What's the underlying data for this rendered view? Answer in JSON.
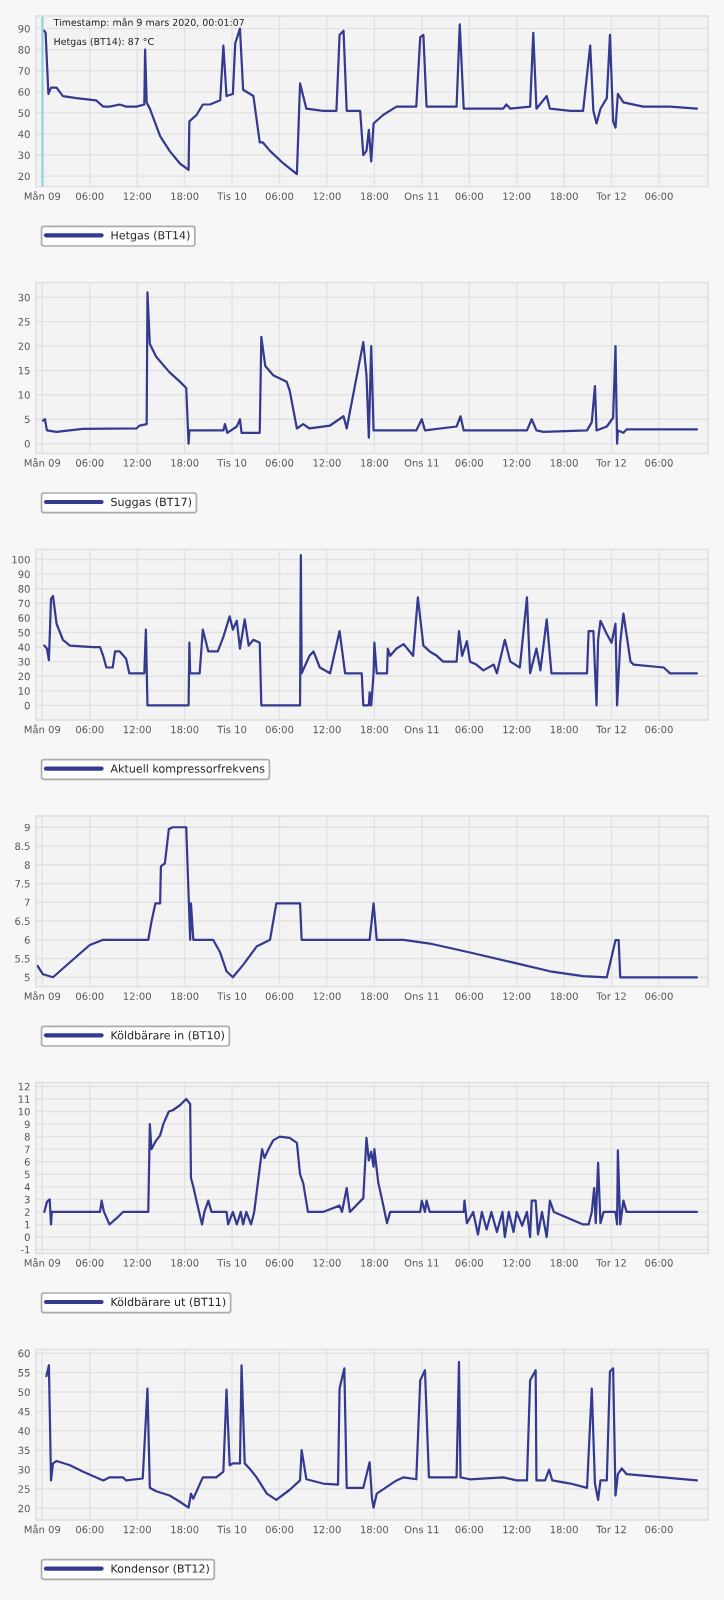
{
  "chart_data": [
    {
      "type": "line",
      "xlim": [
        "2020-03-08T23:12",
        "2020-03-12T12:12"
      ],
      "xticks": [
        {
          "value": "2020-03-09",
          "label": "Mån 09"
        },
        {
          "value": "2020-03-09T06:00",
          "label": "06:00"
        },
        {
          "value": "2020-03-09T12:00",
          "label": "12:00"
        },
        {
          "value": "2020-03-09T18:00",
          "label": "18:00"
        },
        {
          "value": "2020-03-10",
          "label": "Tis 10"
        },
        {
          "value": "2020-03-10T06:00",
          "label": "06:00"
        },
        {
          "value": "2020-03-10T12:00",
          "label": "12:00"
        },
        {
          "value": "2020-03-10T18:00",
          "label": "18:00"
        },
        {
          "value": "2020-03-11",
          "label": "Ons 11"
        },
        {
          "value": "2020-03-11T06:00",
          "label": "06:00"
        },
        {
          "value": "2020-03-11T12:00",
          "label": "12:00"
        },
        {
          "value": "2020-03-11T18:00",
          "label": "18:00"
        },
        {
          "value": "2020-03-12",
          "label": "Tor 12"
        },
        {
          "value": "2020-03-12T06:00",
          "label": "06:00"
        }
      ],
      "ylim": [
        15,
        96
      ],
      "yticks": [
        20,
        30,
        40,
        50,
        60,
        70,
        80,
        90
      ],
      "grid": true,
      "legend": "bottom left",
      "marker": "none",
      "line_style": "solid",
      "ref_lines": [
        {
          "axis": "x",
          "value": "2020-03-09T00:01",
          "color": "#8fd3e0"
        }
      ],
      "annotations": [
        {
          "text": "Timestamp: mån 9 mars 2020, 00:01:07",
          "x": "2020-03-09T00:01",
          "y": 90
        },
        {
          "text": "Hetgas (BT14): 87 °C",
          "x": "2020-03-09T00:01",
          "y": 87
        }
      ],
      "series": [
        {
          "name": "Hetgas (BT14)",
          "color": "#343a8f",
          "x": [
            "2020-03-09T00:15",
            "2020-03-09T00:25",
            "2020-03-09T00:46",
            "2020-03-09T01:06",
            "2020-03-09T01:48",
            "2020-03-09T02:36",
            "2020-03-09T04:18",
            "2020-03-09T06:48",
            "2020-03-09T07:42",
            "2020-03-09T08:30",
            "2020-03-09T09:48",
            "2020-03-09T10:36",
            "2020-03-09T11:54",
            "2020-03-09T12:54",
            "2020-03-09T13:00",
            "2020-03-09T13:12",
            "2020-03-09T13:36",
            "2020-03-09T14:54",
            "2020-03-09T16:06",
            "2020-03-09T17:24",
            "2020-03-09T18:30",
            "2020-03-09T18:36",
            "2020-03-09T19:30",
            "2020-03-09T20:18",
            "2020-03-09T21:12",
            "2020-03-09T22:30",
            "2020-03-09T22:54",
            "2020-03-09T23:18",
            "2020-03-10T00:06",
            "2020-03-10T00:24",
            "2020-03-10T01:00",
            "2020-03-10T01:24",
            "2020-03-10T02:42",
            "2020-03-10T03:30",
            "2020-03-10T03:54",
            "2020-03-10T04:48",
            "2020-03-10T06:30",
            "2020-03-10T08:12",
            "2020-03-10T08:36",
            "2020-03-10T09:24",
            "2020-03-10T11:30",
            "2020-03-10T13:12",
            "2020-03-10T13:36",
            "2020-03-10T14:06",
            "2020-03-10T14:30",
            "2020-03-10T16:12",
            "2020-03-10T16:36",
            "2020-03-10T17:00",
            "2020-03-10T17:18",
            "2020-03-10T17:36",
            "2020-03-10T17:54",
            "2020-03-10T19:06",
            "2020-03-10T20:48",
            "2020-03-10T22:30",
            "2020-03-10T23:18",
            "2020-03-10T23:48",
            "2020-03-11T00:12",
            "2020-03-11T00:36",
            "2020-03-11T04:24",
            "2020-03-11T04:48",
            "2020-03-11T05:18",
            "2020-03-11T10:18",
            "2020-03-11T10:42",
            "2020-03-11T11:12",
            "2020-03-11T13:42",
            "2020-03-11T14:06",
            "2020-03-11T14:30",
            "2020-03-11T15:48",
            "2020-03-11T16:12",
            "2020-03-11T18:48",
            "2020-03-11T20:24",
            "2020-03-11T21:18",
            "2020-03-11T21:42",
            "2020-03-11T22:06",
            "2020-03-11T22:36",
            "2020-03-11T23:24",
            "2020-03-11T23:48",
            "2020-03-12T00:12",
            "2020-03-12T00:30",
            "2020-03-12T00:48",
            "2020-03-12T01:30",
            "2020-03-12T04:00",
            "2020-03-12T07:24",
            "2020-03-12T10:48"
          ],
          "values": [
            89,
            88,
            59,
            62,
            62,
            58,
            57,
            56,
            53,
            53,
            54,
            53,
            53,
            54,
            80,
            55,
            52,
            39,
            32,
            26,
            23,
            46,
            49,
            54,
            54,
            56,
            82,
            58,
            59,
            83,
            90,
            61,
            58,
            36,
            36,
            32,
            26,
            21,
            64,
            52,
            51,
            51,
            87,
            89,
            51,
            51,
            30,
            32,
            42,
            27,
            45,
            49,
            53,
            53,
            53,
            86,
            87,
            53,
            53,
            92,
            52,
            52,
            54,
            52,
            53,
            88,
            52,
            58,
            52,
            51,
            51,
            82,
            51,
            45,
            52,
            57,
            87,
            46,
            43,
            59,
            55,
            53,
            53,
            52
          ]
        }
      ]
    },
    {
      "type": "line",
      "xlim": [
        "2020-03-08T23:12",
        "2020-03-12T12:12"
      ],
      "xticks": [
        {
          "value": "2020-03-09",
          "label": "Mån 09"
        },
        {
          "value": "2020-03-09T06:00",
          "label": "06:00"
        },
        {
          "value": "2020-03-09T12:00",
          "label": "12:00"
        },
        {
          "value": "2020-03-09T18:00",
          "label": "18:00"
        },
        {
          "value": "2020-03-10",
          "label": "Tis 10"
        },
        {
          "value": "2020-03-10T06:00",
          "label": "06:00"
        },
        {
          "value": "2020-03-10T12:00",
          "label": "12:00"
        },
        {
          "value": "2020-03-10T18:00",
          "label": "18:00"
        },
        {
          "value": "2020-03-11",
          "label": "Ons 11"
        },
        {
          "value": "2020-03-11T06:00",
          "label": "06:00"
        },
        {
          "value": "2020-03-11T12:00",
          "label": "12:00"
        },
        {
          "value": "2020-03-11T18:00",
          "label": "18:00"
        },
        {
          "value": "2020-03-12",
          "label": "Tor 12"
        },
        {
          "value": "2020-03-12T06:00",
          "label": "06:00"
        }
      ],
      "ylim": [
        -2,
        33
      ],
      "yticks": [
        0,
        5,
        10,
        15,
        20,
        25,
        30
      ],
      "grid": true,
      "legend": "bottom left",
      "marker": "none",
      "line_style": "solid",
      "series": [
        {
          "name": "Suggas (BT17)",
          "color": "#343a8f",
          "x": [
            "2020-03-09T00:05",
            "2020-03-09T00:20",
            "2020-03-09T00:35",
            "2020-03-09T01:48",
            "2020-03-09T05:06",
            "2020-03-09T11:54",
            "2020-03-09T12:18",
            "2020-03-09T13:12",
            "2020-03-09T13:18",
            "2020-03-09T13:36",
            "2020-03-09T14:24",
            "2020-03-09T16:06",
            "2020-03-09T17:24",
            "2020-03-09T18:12",
            "2020-03-09T18:30",
            "2020-03-09T18:36",
            "2020-03-09T22:54",
            "2020-03-09T23:06",
            "2020-03-09T23:24",
            "2020-03-10T00:36",
            "2020-03-10T01:00",
            "2020-03-10T01:12",
            "2020-03-10T03:30",
            "2020-03-10T03:42",
            "2020-03-10T04:12",
            "2020-03-10T05:12",
            "2020-03-10T06:54",
            "2020-03-10T07:18",
            "2020-03-10T08:12",
            "2020-03-10T09:00",
            "2020-03-10T09:48",
            "2020-03-10T12:24",
            "2020-03-10T14:06",
            "2020-03-10T14:30",
            "2020-03-10T16:36",
            "2020-03-10T17:00",
            "2020-03-10T17:18",
            "2020-03-10T17:36",
            "2020-03-10T17:54",
            "2020-03-10T23:18",
            "2020-03-11T00:00",
            "2020-03-11T00:24",
            "2020-03-11T04:24",
            "2020-03-11T04:54",
            "2020-03-11T05:18",
            "2020-03-11T13:18",
            "2020-03-11T13:54",
            "2020-03-11T14:30",
            "2020-03-11T15:24",
            "2020-03-11T20:54",
            "2020-03-11T21:30",
            "2020-03-11T21:54",
            "2020-03-11T22:06",
            "2020-03-11T23:24",
            "2020-03-12T00:12",
            "2020-03-12T00:30",
            "2020-03-12T00:42",
            "2020-03-12T00:48",
            "2020-03-12T01:30",
            "2020-03-12T01:54",
            "2020-03-12T10:48"
          ],
          "values": [
            4.7,
            5,
            2.7,
            2.4,
            3,
            3.1,
            3.7,
            4,
            31,
            20.4,
            17.8,
            14.6,
            12.7,
            11.4,
            0,
            2.7,
            2.7,
            4,
            2.2,
            3.5,
            5,
            2.2,
            2.2,
            21.9,
            15.9,
            14,
            12.7,
            10.8,
            3.1,
            4,
            3.1,
            3.7,
            5.6,
            3.1,
            20.8,
            14,
            1.2,
            20,
            2.7,
            2.7,
            5,
            2.7,
            3.5,
            5.6,
            2.7,
            2.7,
            5,
            2.7,
            2.4,
            2.7,
            4.4,
            11.8,
            2.7,
            3.5,
            5.3,
            20,
            0,
            2.7,
            2.2,
            2.9,
            2.9
          ]
        }
      ]
    },
    {
      "type": "line",
      "xlim": [
        "2020-03-08T23:12",
        "2020-03-12T12:12"
      ],
      "xticks": [
        {
          "value": "2020-03-09",
          "label": "Mån 09"
        },
        {
          "value": "2020-03-09T06:00",
          "label": "06:00"
        },
        {
          "value": "2020-03-09T12:00",
          "label": "12:00"
        },
        {
          "value": "2020-03-09T18:00",
          "label": "18:00"
        },
        {
          "value": "2020-03-10",
          "label": "Tis 10"
        },
        {
          "value": "2020-03-10T06:00",
          "label": "06:00"
        },
        {
          "value": "2020-03-10T12:00",
          "label": "12:00"
        },
        {
          "value": "2020-03-10T18:00",
          "label": "18:00"
        },
        {
          "value": "2020-03-11",
          "label": "Ons 11"
        },
        {
          "value": "2020-03-11T06:00",
          "label": "06:00"
        },
        {
          "value": "2020-03-11T12:00",
          "label": "12:00"
        },
        {
          "value": "2020-03-11T18:00",
          "label": "18:00"
        },
        {
          "value": "2020-03-12",
          "label": "Tor 12"
        },
        {
          "value": "2020-03-12T06:00",
          "label": "06:00"
        }
      ],
      "ylim": [
        -10,
        107
      ],
      "yticks": [
        0,
        10,
        20,
        30,
        40,
        50,
        60,
        70,
        80,
        90,
        100
      ],
      "grid": true,
      "legend": "bottom left",
      "marker": "none",
      "line_style": "solid",
      "series": [
        {
          "name": "Aktuell kompressorfrekvens",
          "color": "#343a8f",
          "x": [
            "2020-03-09T00:15",
            "2020-03-09T00:35",
            "2020-03-09T00:50",
            "2020-03-09T01:06",
            "2020-03-09T01:21",
            "2020-03-09T01:48",
            "2020-03-09T02:36",
            "2020-03-09T03:30",
            "2020-03-09T06:24",
            "2020-03-09T07:18",
            "2020-03-09T07:42",
            "2020-03-09T08:06",
            "2020-03-09T08:54",
            "2020-03-09T09:12",
            "2020-03-09T09:48",
            "2020-03-09T10:36",
            "2020-03-09T11:00",
            "2020-03-09T12:54",
            "2020-03-09T13:06",
            "2020-03-09T13:18",
            "2020-03-09T18:30",
            "2020-03-09T18:36",
            "2020-03-09T18:42",
            "2020-03-09T19:54",
            "2020-03-09T20:18",
            "2020-03-09T21:00",
            "2020-03-09T22:12",
            "2020-03-09T22:54",
            "2020-03-09T23:42",
            "2020-03-10T00:06",
            "2020-03-10T00:36",
            "2020-03-10T01:00",
            "2020-03-10T01:36",
            "2020-03-10T02:06",
            "2020-03-10T02:42",
            "2020-03-10T03:30",
            "2020-03-10T03:42",
            "2020-03-10T08:36",
            "2020-03-10T08:42",
            "2020-03-10T08:48",
            "2020-03-10T09:48",
            "2020-03-10T10:18",
            "2020-03-10T11:06",
            "2020-03-10T12:24",
            "2020-03-10T13:36",
            "2020-03-10T14:18",
            "2020-03-10T16:24",
            "2020-03-10T16:36",
            "2020-03-10T17:18",
            "2020-03-10T17:24",
            "2020-03-10T17:36",
            "2020-03-10T17:54",
            "2020-03-10T18:00",
            "2020-03-10T18:18",
            "2020-03-10T19:36",
            "2020-03-10T19:42",
            "2020-03-10T20:00",
            "2020-03-10T20:48",
            "2020-03-10T21:42",
            "2020-03-10T22:54",
            "2020-03-10T23:30",
            "2020-03-11T00:12",
            "2020-03-11T01:00",
            "2020-03-11T01:54",
            "2020-03-11T02:42",
            "2020-03-11T04:24",
            "2020-03-11T04:42",
            "2020-03-11T05:06",
            "2020-03-11T05:42",
            "2020-03-11T06:06",
            "2020-03-11T06:54",
            "2020-03-11T07:48",
            "2020-03-11T09:06",
            "2020-03-11T09:30",
            "2020-03-11T10:30",
            "2020-03-11T11:12",
            "2020-03-11T12:24",
            "2020-03-11T13:18",
            "2020-03-11T13:42",
            "2020-03-11T14:30",
            "2020-03-11T15:00",
            "2020-03-11T15:48",
            "2020-03-11T16:24",
            "2020-03-11T20:54",
            "2020-03-11T21:06",
            "2020-03-11T21:42",
            "2020-03-11T22:06",
            "2020-03-11T22:18",
            "2020-03-11T22:36",
            "2020-03-11T23:24",
            "2020-03-12T00:00",
            "2020-03-12T00:30",
            "2020-03-12T00:42",
            "2020-03-12T01:06",
            "2020-03-12T01:30",
            "2020-03-12T02:24",
            "2020-03-12T02:48",
            "2020-03-12T06:36",
            "2020-03-12T07:24",
            "2020-03-12T10:48"
          ],
          "values": [
            41,
            39,
            31,
            73,
            75,
            56,
            45,
            41,
            40,
            40,
            34,
            26,
            26,
            37,
            37,
            32,
            22,
            22,
            52,
            0,
            0,
            43,
            22,
            22,
            52,
            37,
            37,
            47,
            61,
            52,
            58,
            39,
            59,
            41,
            45,
            43,
            0,
            0,
            103,
            22,
            34,
            37,
            26,
            22,
            51,
            22,
            22,
            0,
            0,
            9,
            0,
            22,
            43,
            22,
            22,
            39,
            34,
            39,
            42,
            34,
            74,
            41,
            37,
            34,
            30,
            30,
            51,
            34,
            44,
            30,
            28,
            24,
            28,
            22,
            45,
            30,
            26,
            74,
            22,
            39,
            24,
            59,
            22,
            22,
            51,
            51,
            0,
            45,
            58,
            49,
            43,
            56,
            0,
            43,
            63,
            30,
            28,
            26,
            22,
            22
          ]
        }
      ]
    },
    {
      "type": "line",
      "xlim": [
        "2020-03-08T23:12",
        "2020-03-12T12:12"
      ],
      "xticks": [
        {
          "value": "2020-03-09",
          "label": "Mån 09"
        },
        {
          "value": "2020-03-09T06:00",
          "label": "06:00"
        },
        {
          "value": "2020-03-09T12:00",
          "label": "12:00"
        },
        {
          "value": "2020-03-09T18:00",
          "label": "18:00"
        },
        {
          "value": "2020-03-10",
          "label": "Tis 10"
        },
        {
          "value": "2020-03-10T06:00",
          "label": "06:00"
        },
        {
          "value": "2020-03-10T12:00",
          "label": "12:00"
        },
        {
          "value": "2020-03-10T18:00",
          "label": "18:00"
        },
        {
          "value": "2020-03-11",
          "label": "Ons 11"
        },
        {
          "value": "2020-03-11T06:00",
          "label": "06:00"
        },
        {
          "value": "2020-03-11T12:00",
          "label": "12:00"
        },
        {
          "value": "2020-03-11T18:00",
          "label": "18:00"
        },
        {
          "value": "2020-03-12",
          "label": "Tor 12"
        },
        {
          "value": "2020-03-12T06:00",
          "label": "06:00"
        }
      ],
      "ylim": [
        4.75,
        9.3
      ],
      "yticks": [
        5,
        5.5,
        6,
        6.5,
        7,
        7.5,
        8,
        8.5,
        9
      ],
      "grid": true,
      "legend": "bottom left",
      "marker": "none",
      "line_style": "solid",
      "series": [
        {
          "name": "Köldbärare in (BT10)",
          "color": "#343a8f",
          "x": [
            "2020-03-08T23:25",
            "2020-03-09T00:05",
            "2020-03-09T01:21",
            "2020-03-09T03:30",
            "2020-03-09T06:00",
            "2020-03-09T07:42",
            "2020-03-09T13:24",
            "2020-03-09T13:48",
            "2020-03-09T14:18",
            "2020-03-09T14:54",
            "2020-03-09T15:00",
            "2020-03-09T15:30",
            "2020-03-09T16:00",
            "2020-03-09T16:30",
            "2020-03-09T18:12",
            "2020-03-09T18:42",
            "2020-03-09T18:48",
            "2020-03-09T19:06",
            "2020-03-09T21:36",
            "2020-03-09T22:30",
            "2020-03-09T23:18",
            "2020-03-10T00:06",
            "2020-03-10T01:24",
            "2020-03-10T03:06",
            "2020-03-10T04:48",
            "2020-03-10T05:36",
            "2020-03-10T08:36",
            "2020-03-10T08:48",
            "2020-03-10T17:24",
            "2020-03-10T17:54",
            "2020-03-10T18:18",
            "2020-03-10T21:42",
            "2020-03-11T01:00",
            "2020-03-11T06:06",
            "2020-03-11T11:12",
            "2020-03-11T16:12",
            "2020-03-11T20:24",
            "2020-03-11T23:24",
            "2020-03-12T00:30",
            "2020-03-12T00:54",
            "2020-03-12T01:06",
            "2020-03-12T10:48"
          ],
          "values": [
            5.3,
            5.08,
            5.0,
            5.4,
            5.86,
            6.0,
            6.0,
            6.48,
            6.97,
            6.97,
            7.96,
            8.04,
            8.95,
            9.0,
            9.0,
            6.0,
            6.97,
            6.0,
            6.0,
            5.66,
            5.16,
            5.0,
            5.33,
            5.82,
            6.0,
            6.97,
            6.97,
            6.0,
            6.0,
            6.97,
            6.0,
            6.0,
            5.9,
            5.66,
            5.41,
            5.16,
            5.03,
            5.0,
            5.99,
            5.99,
            5.0,
            5.0
          ]
        }
      ]
    },
    {
      "type": "line",
      "xlim": [
        "2020-03-08T23:12",
        "2020-03-12T12:12"
      ],
      "xticks": [
        {
          "value": "2020-03-09",
          "label": "Mån 09"
        },
        {
          "value": "2020-03-09T06:00",
          "label": "06:00"
        },
        {
          "value": "2020-03-09T12:00",
          "label": "12:00"
        },
        {
          "value": "2020-03-09T18:00",
          "label": "18:00"
        },
        {
          "value": "2020-03-10",
          "label": "Tis 10"
        },
        {
          "value": "2020-03-10T06:00",
          "label": "06:00"
        },
        {
          "value": "2020-03-10T12:00",
          "label": "12:00"
        },
        {
          "value": "2020-03-10T18:00",
          "label": "18:00"
        },
        {
          "value": "2020-03-11",
          "label": "Ons 11"
        },
        {
          "value": "2020-03-11T06:00",
          "label": "06:00"
        },
        {
          "value": "2020-03-11T12:00",
          "label": "12:00"
        },
        {
          "value": "2020-03-11T18:00",
          "label": "18:00"
        },
        {
          "value": "2020-03-12",
          "label": "Tor 12"
        },
        {
          "value": "2020-03-12T06:00",
          "label": "06:00"
        }
      ],
      "ylim": [
        -1.3,
        12.3
      ],
      "yticks": [
        -1,
        0,
        1,
        2,
        3,
        4,
        5,
        6,
        7,
        8,
        9,
        10,
        11,
        12
      ],
      "grid": true,
      "legend": "bottom left",
      "marker": "none",
      "line_style": "solid",
      "series": [
        {
          "name": "Köldbärare ut (BT11)",
          "color": "#343a8f",
          "x": [
            "2020-03-09T00:15",
            "2020-03-09T00:35",
            "2020-03-09T00:56",
            "2020-03-09T01:06",
            "2020-03-09T01:12",
            "2020-03-09T07:18",
            "2020-03-09T07:30",
            "2020-03-09T07:48",
            "2020-03-09T08:30",
            "2020-03-09T09:24",
            "2020-03-09T10:12",
            "2020-03-09T13:24",
            "2020-03-09T13:36",
            "2020-03-09T13:48",
            "2020-03-09T14:18",
            "2020-03-09T14:54",
            "2020-03-09T15:18",
            "2020-03-09T16:00",
            "2020-03-09T16:30",
            "2020-03-09T17:24",
            "2020-03-09T18:12",
            "2020-03-09T18:42",
            "2020-03-09T18:48",
            "2020-03-09T19:06",
            "2020-03-09T19:30",
            "2020-03-09T20:12",
            "2020-03-09T20:30",
            "2020-03-09T21:00",
            "2020-03-09T21:24",
            "2020-03-09T23:18",
            "2020-03-09T23:30",
            "2020-03-10T00:06",
            "2020-03-10T00:36",
            "2020-03-10T01:06",
            "2020-03-10T01:24",
            "2020-03-10T01:48",
            "2020-03-10T02:24",
            "2020-03-10T02:48",
            "2020-03-10T03:48",
            "2020-03-10T04:06",
            "2020-03-10T04:36",
            "2020-03-10T05:12",
            "2020-03-10T06:00",
            "2020-03-10T07:18",
            "2020-03-10T08:12",
            "2020-03-10T08:36",
            "2020-03-10T09:00",
            "2020-03-10T09:36",
            "2020-03-10T11:30",
            "2020-03-10T13:36",
            "2020-03-10T13:54",
            "2020-03-10T14:30",
            "2020-03-10T14:54",
            "2020-03-10T16:36",
            "2020-03-10T17:00",
            "2020-03-10T17:18",
            "2020-03-10T17:36",
            "2020-03-10T17:54",
            "2020-03-10T18:00",
            "2020-03-10T18:30",
            "2020-03-10T19:00",
            "2020-03-10T19:36",
            "2020-03-10T20:00",
            "2020-03-10T23:48",
            "2020-03-11T00:00",
            "2020-03-11T00:24",
            "2020-03-11T00:36",
            "2020-03-11T01:00",
            "2020-03-11T05:18",
            "2020-03-11T05:24",
            "2020-03-11T05:42",
            "2020-03-11T06:30",
            "2020-03-11T07:06",
            "2020-03-11T07:36",
            "2020-03-11T08:12",
            "2020-03-11T08:48",
            "2020-03-11T09:30",
            "2020-03-11T10:12",
            "2020-03-11T10:30",
            "2020-03-11T11:00",
            "2020-03-11T11:36",
            "2020-03-11T12:00",
            "2020-03-11T12:42",
            "2020-03-11T13:18",
            "2020-03-11T13:42",
            "2020-03-11T13:54",
            "2020-03-11T14:24",
            "2020-03-11T14:42",
            "2020-03-11T15:12",
            "2020-03-11T15:48",
            "2020-03-11T16:12",
            "2020-03-11T16:42",
            "2020-03-11T20:24",
            "2020-03-11T21:06",
            "2020-03-11T21:30",
            "2020-03-11T21:48",
            "2020-03-11T22:00",
            "2020-03-11T22:18",
            "2020-03-11T22:36",
            "2020-03-11T23:00",
            "2020-03-12T00:30",
            "2020-03-12T00:42",
            "2020-03-12T00:48",
            "2020-03-12T01:06",
            "2020-03-12T01:30",
            "2020-03-12T01:54",
            "2020-03-12T10:48"
          ],
          "values": [
            2,
            2.8,
            3,
            1,
            2,
            2,
            2.9,
            2,
            1,
            1.5,
            2,
            2,
            9,
            7,
            7.6,
            8.1,
            9,
            10,
            10.1,
            10.5,
            11,
            10.6,
            4.7,
            4,
            2.9,
            1,
            2,
            2.9,
            2,
            2,
            1,
            2,
            1,
            2,
            1,
            2,
            1,
            2,
            7,
            6.3,
            7,
            7.7,
            8,
            7.9,
            7.5,
            5,
            4.3,
            2,
            2,
            2.5,
            2,
            3.9,
            2,
            3.1,
            7.9,
            6.1,
            6.8,
            5.6,
            7,
            4.3,
            2.9,
            1.1,
            2,
            2,
            2.9,
            2,
            2.9,
            2,
            2,
            2.9,
            1.1,
            2,
            0.2,
            2,
            0.6,
            2,
            0.4,
            2,
            0,
            2,
            0.4,
            2,
            0.9,
            2,
            0,
            2.9,
            2.9,
            0.2,
            2,
            0,
            2.9,
            2,
            1,
            1,
            2,
            3.9,
            1.1,
            5.9,
            1.1,
            2,
            2,
            1,
            6.9,
            1,
            2.9,
            2,
            2
          ]
        }
      ]
    },
    {
      "type": "line",
      "xlim": [
        "2020-03-08T23:12",
        "2020-03-12T12:12"
      ],
      "xticks": [
        {
          "value": "2020-03-09",
          "label": "Mån 09"
        },
        {
          "value": "2020-03-09T06:00",
          "label": "06:00"
        },
        {
          "value": "2020-03-09T12:00",
          "label": "12:00"
        },
        {
          "value": "2020-03-09T18:00",
          "label": "18:00"
        },
        {
          "value": "2020-03-10",
          "label": "Tis 10"
        },
        {
          "value": "2020-03-10T06:00",
          "label": "06:00"
        },
        {
          "value": "2020-03-10T12:00",
          "label": "12:00"
        },
        {
          "value": "2020-03-10T18:00",
          "label": "18:00"
        },
        {
          "value": "2020-03-11",
          "label": "Ons 11"
        },
        {
          "value": "2020-03-11T06:00",
          "label": "06:00"
        },
        {
          "value": "2020-03-11T12:00",
          "label": "12:00"
        },
        {
          "value": "2020-03-11T18:00",
          "label": "18:00"
        },
        {
          "value": "2020-03-12",
          "label": "Tor 12"
        },
        {
          "value": "2020-03-12T06:00",
          "label": "06:00"
        }
      ],
      "ylim": [
        17,
        61
      ],
      "yticks": [
        20,
        25,
        30,
        35,
        40,
        45,
        50,
        55,
        60
      ],
      "grid": true,
      "legend": "bottom left",
      "marker": "none",
      "line_style": "solid",
      "series": [
        {
          "name": "Kondensor (BT12)",
          "color": "#343a8f",
          "x": [
            "2020-03-09T00:31",
            "2020-03-09T00:50",
            "2020-03-09T01:06",
            "2020-03-09T01:21",
            "2020-03-09T01:48",
            "2020-03-09T03:30",
            "2020-03-09T05:06",
            "2020-03-09T07:42",
            "2020-03-09T08:30",
            "2020-03-09T10:12",
            "2020-03-09T10:36",
            "2020-03-09T12:42",
            "2020-03-09T13:18",
            "2020-03-09T13:36",
            "2020-03-09T14:24",
            "2020-03-09T16:06",
            "2020-03-09T17:24",
            "2020-03-09T18:30",
            "2020-03-09T18:48",
            "2020-03-09T19:06",
            "2020-03-09T20:18",
            "2020-03-09T22:00",
            "2020-03-09T22:54",
            "2020-03-09T23:18",
            "2020-03-09T23:42",
            "2020-03-10T00:06",
            "2020-03-10T01:00",
            "2020-03-10T01:12",
            "2020-03-10T01:36",
            "2020-03-10T02:12",
            "2020-03-10T03:06",
            "2020-03-10T04:24",
            "2020-03-10T05:36",
            "2020-03-10T07:18",
            "2020-03-10T08:36",
            "2020-03-10T08:48",
            "2020-03-10T09:24",
            "2020-03-10T11:30",
            "2020-03-10T13:24",
            "2020-03-10T13:36",
            "2020-03-10T14:12",
            "2020-03-10T14:30",
            "2020-03-10T16:36",
            "2020-03-10T17:24",
            "2020-03-10T17:42",
            "2020-03-10T17:54",
            "2020-03-10T18:18",
            "2020-03-10T20:48",
            "2020-03-10T21:42",
            "2020-03-10T23:18",
            "2020-03-10T23:48",
            "2020-03-11T00:24",
            "2020-03-11T00:54",
            "2020-03-11T04:24",
            "2020-03-11T04:42",
            "2020-03-11T04:54",
            "2020-03-11T06:06",
            "2020-03-11T10:18",
            "2020-03-11T12:00",
            "2020-03-11T13:18",
            "2020-03-11T13:42",
            "2020-03-11T14:24",
            "2020-03-11T14:30",
            "2020-03-11T15:36",
            "2020-03-11T16:06",
            "2020-03-11T16:30",
            "2020-03-11T18:48",
            "2020-03-11T20:54",
            "2020-03-11T21:30",
            "2020-03-11T21:54",
            "2020-03-11T22:18",
            "2020-03-11T22:36",
            "2020-03-11T23:24",
            "2020-03-11T23:48",
            "2020-03-12T00:12",
            "2020-03-12T00:30",
            "2020-03-12T00:48",
            "2020-03-12T01:18",
            "2020-03-12T01:54",
            "2020-03-12T10:48"
          ],
          "values": [
            54.1,
            56.9,
            27.2,
            31.6,
            32.2,
            31.1,
            29.5,
            27.2,
            28,
            28,
            27.2,
            27.7,
            50.9,
            25.3,
            24.4,
            23.3,
            21.7,
            20.2,
            23.8,
            22.5,
            28,
            28,
            29.5,
            50.6,
            31.1,
            31.6,
            31.6,
            56.9,
            31.6,
            30.3,
            28,
            23.8,
            22.2,
            24.8,
            27.2,
            35,
            27.5,
            26.4,
            26.1,
            50.9,
            56.1,
            25.3,
            25.3,
            31.9,
            22.5,
            20.2,
            23.8,
            27.2,
            28,
            27.5,
            53,
            55.6,
            28,
            28,
            57.7,
            28,
            27.5,
            28,
            27.2,
            27.2,
            53,
            55.6,
            27.2,
            27.2,
            30,
            27.2,
            26.4,
            25.3,
            50.9,
            26.4,
            22.2,
            27.2,
            27.2,
            55.3,
            56.1,
            23.3,
            28.8,
            30.3,
            28.8,
            27.2
          ]
        }
      ]
    }
  ]
}
